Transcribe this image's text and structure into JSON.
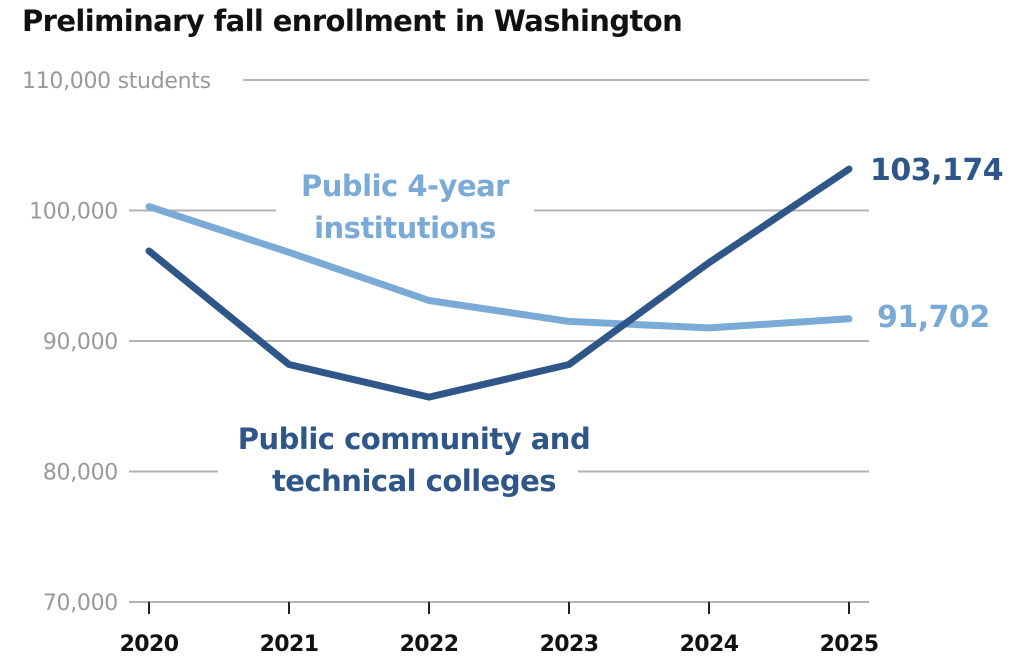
{
  "chart_data": {
    "type": "line",
    "title": "Preliminary fall enrollment in Washington",
    "xlabel": "",
    "ylabel": "students",
    "x": [
      "2020",
      "2021",
      "2022",
      "2023",
      "2024",
      "2025"
    ],
    "ylim": [
      70000,
      110000
    ],
    "yticks": [
      70000,
      80000,
      90000,
      100000,
      110000
    ],
    "ytick_labels": [
      "70,000",
      "80,000",
      "90,000",
      "100,000",
      "110,000 students"
    ],
    "grid": true,
    "legend": "inline labels",
    "series": [
      {
        "name": "Public 4-year institutions",
        "label_lines": [
          "Public 4-year",
          "institutions"
        ],
        "color": "#7aaad6",
        "values": [
          100300,
          96800,
          93100,
          91500,
          91000,
          91702
        ],
        "end_label": "91,702"
      },
      {
        "name": "Public community and technical colleges",
        "label_lines": [
          "Public community and",
          "technical colleges"
        ],
        "color": "#2e5688",
        "values": [
          96900,
          88200,
          85700,
          88200,
          96000,
          103174
        ],
        "end_label": "103,174"
      }
    ]
  }
}
